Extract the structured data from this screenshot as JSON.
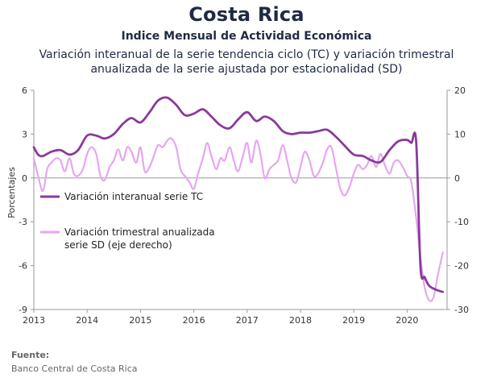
{
  "header": {
    "title": "Costa Rica",
    "subtitle": "Indice Mensual de  Actividad Económica",
    "description_line1": "Variación interanual de la serie tendencia ciclo (TC) y variación trimestral",
    "description_line2": "anualizada de la serie ajustada por estacionalidad (SD)"
  },
  "source": {
    "label": "Fuente:",
    "text": "Banco Central de Costa Rica"
  },
  "chart_data": {
    "type": "line",
    "title": "",
    "xlabel": "",
    "ylabel": "Porcentajes",
    "xlim": [
      2013,
      2020.75
    ],
    "x_ticks": [
      "2013",
      "2014",
      "2015",
      "2016",
      "2017",
      "2018",
      "2019",
      "2020"
    ],
    "y_left": {
      "range": [
        -9,
        6
      ],
      "ticks": [
        "6",
        "3",
        "0",
        "-3",
        "-6",
        "-9"
      ],
      "tick_values": [
        6,
        3,
        0,
        -3,
        -6,
        -9
      ]
    },
    "y_right": {
      "range": [
        -30,
        20
      ],
      "ticks": [
        "20",
        "10",
        "0",
        "-10",
        "-20",
        "-30"
      ],
      "tick_values": [
        20,
        10,
        0,
        -10,
        -20,
        -30
      ]
    },
    "grid": false,
    "legend_placement": "center-left",
    "series": [
      {
        "name": "Variación interanual serie TC",
        "axis": "left",
        "color": "#8b3a9c",
        "points": [
          [
            2013.0,
            2.1
          ],
          [
            2013.08,
            1.6
          ],
          [
            2013.17,
            1.5
          ],
          [
            2013.33,
            1.8
          ],
          [
            2013.5,
            1.9
          ],
          [
            2013.67,
            1.6
          ],
          [
            2013.83,
            1.9
          ],
          [
            2014.0,
            2.9
          ],
          [
            2014.17,
            2.9
          ],
          [
            2014.33,
            2.7
          ],
          [
            2014.5,
            3.0
          ],
          [
            2014.67,
            3.7
          ],
          [
            2014.83,
            4.1
          ],
          [
            2015.0,
            3.8
          ],
          [
            2015.17,
            4.5
          ],
          [
            2015.33,
            5.3
          ],
          [
            2015.5,
            5.5
          ],
          [
            2015.67,
            5.0
          ],
          [
            2015.83,
            4.3
          ],
          [
            2016.0,
            4.4
          ],
          [
            2016.17,
            4.7
          ],
          [
            2016.33,
            4.2
          ],
          [
            2016.5,
            3.6
          ],
          [
            2016.67,
            3.4
          ],
          [
            2016.83,
            4.0
          ],
          [
            2017.0,
            4.5
          ],
          [
            2017.17,
            3.9
          ],
          [
            2017.33,
            4.2
          ],
          [
            2017.5,
            3.9
          ],
          [
            2017.67,
            3.2
          ],
          [
            2017.83,
            3.0
          ],
          [
            2018.0,
            3.1
          ],
          [
            2018.17,
            3.1
          ],
          [
            2018.33,
            3.2
          ],
          [
            2018.5,
            3.3
          ],
          [
            2018.67,
            2.8
          ],
          [
            2018.83,
            2.2
          ],
          [
            2019.0,
            1.6
          ],
          [
            2019.17,
            1.5
          ],
          [
            2019.33,
            1.2
          ],
          [
            2019.5,
            1.1
          ],
          [
            2019.67,
            1.9
          ],
          [
            2019.83,
            2.5
          ],
          [
            2020.0,
            2.6
          ],
          [
            2020.08,
            2.4
          ],
          [
            2020.17,
            2.5
          ],
          [
            2020.25,
            -6.0
          ],
          [
            2020.33,
            -6.8
          ],
          [
            2020.42,
            -7.4
          ],
          [
            2020.58,
            -7.7
          ],
          [
            2020.67,
            -7.8
          ]
        ]
      },
      {
        "name": "Variación trimestral anualizada serie SD (eje derecho)",
        "axis": "right",
        "color": "#e6a6f0",
        "points": [
          [
            2013.0,
            4.5
          ],
          [
            2013.08,
            0.5
          ],
          [
            2013.17,
            -3.0
          ],
          [
            2013.25,
            2.0
          ],
          [
            2013.33,
            3.5
          ],
          [
            2013.42,
            4.5
          ],
          [
            2013.5,
            4.0
          ],
          [
            2013.58,
            1.5
          ],
          [
            2013.67,
            4.5
          ],
          [
            2013.75,
            1.0
          ],
          [
            2013.83,
            0.5
          ],
          [
            2013.92,
            2.0
          ],
          [
            2014.0,
            5.5
          ],
          [
            2014.08,
            7.0
          ],
          [
            2014.17,
            5.5
          ],
          [
            2014.25,
            0.5
          ],
          [
            2014.33,
            -0.5
          ],
          [
            2014.42,
            2.5
          ],
          [
            2014.5,
            4.0
          ],
          [
            2014.58,
            6.5
          ],
          [
            2014.67,
            4.0
          ],
          [
            2014.75,
            7.0
          ],
          [
            2014.83,
            6.0
          ],
          [
            2014.92,
            3.5
          ],
          [
            2015.0,
            7.0
          ],
          [
            2015.08,
            1.5
          ],
          [
            2015.17,
            2.5
          ],
          [
            2015.25,
            5.0
          ],
          [
            2015.33,
            7.5
          ],
          [
            2015.42,
            7.0
          ],
          [
            2015.5,
            8.5
          ],
          [
            2015.58,
            9.0
          ],
          [
            2015.67,
            7.0
          ],
          [
            2015.75,
            2.0
          ],
          [
            2015.83,
            0.5
          ],
          [
            2015.92,
            -1.0
          ],
          [
            2016.0,
            -2.5
          ],
          [
            2016.08,
            1.0
          ],
          [
            2016.17,
            4.5
          ],
          [
            2016.25,
            8.0
          ],
          [
            2016.33,
            5.0
          ],
          [
            2016.42,
            2.0
          ],
          [
            2016.5,
            4.5
          ],
          [
            2016.58,
            4.0
          ],
          [
            2016.67,
            7.0
          ],
          [
            2016.75,
            4.0
          ],
          [
            2016.83,
            1.5
          ],
          [
            2016.92,
            5.0
          ],
          [
            2017.0,
            8.0
          ],
          [
            2017.08,
            3.5
          ],
          [
            2017.17,
            8.5
          ],
          [
            2017.25,
            5.5
          ],
          [
            2017.33,
            0.0
          ],
          [
            2017.42,
            2.0
          ],
          [
            2017.5,
            3.0
          ],
          [
            2017.58,
            4.0
          ],
          [
            2017.67,
            7.5
          ],
          [
            2017.75,
            4.0
          ],
          [
            2017.83,
            0.0
          ],
          [
            2017.92,
            -1.0
          ],
          [
            2018.0,
            2.5
          ],
          [
            2018.08,
            6.0
          ],
          [
            2018.17,
            4.0
          ],
          [
            2018.25,
            0.5
          ],
          [
            2018.33,
            1.0
          ],
          [
            2018.42,
            3.5
          ],
          [
            2018.5,
            6.5
          ],
          [
            2018.58,
            7.0
          ],
          [
            2018.67,
            2.0
          ],
          [
            2018.75,
            -2.5
          ],
          [
            2018.83,
            -4.0
          ],
          [
            2018.92,
            -2.0
          ],
          [
            2019.0,
            1.0
          ],
          [
            2019.08,
            3.0
          ],
          [
            2019.17,
            2.0
          ],
          [
            2019.25,
            3.0
          ],
          [
            2019.33,
            5.0
          ],
          [
            2019.42,
            2.5
          ],
          [
            2019.5,
            5.5
          ],
          [
            2019.58,
            3.0
          ],
          [
            2019.67,
            1.0
          ],
          [
            2019.75,
            3.5
          ],
          [
            2019.83,
            4.0
          ],
          [
            2019.92,
            2.5
          ],
          [
            2020.0,
            0.5
          ],
          [
            2020.08,
            -1.0
          ],
          [
            2020.17,
            -9.0
          ],
          [
            2020.25,
            -18.0
          ],
          [
            2020.33,
            -25.0
          ],
          [
            2020.42,
            -28.0
          ],
          [
            2020.5,
            -27.0
          ],
          [
            2020.58,
            -22.0
          ],
          [
            2020.67,
            -17.0
          ]
        ]
      }
    ]
  }
}
